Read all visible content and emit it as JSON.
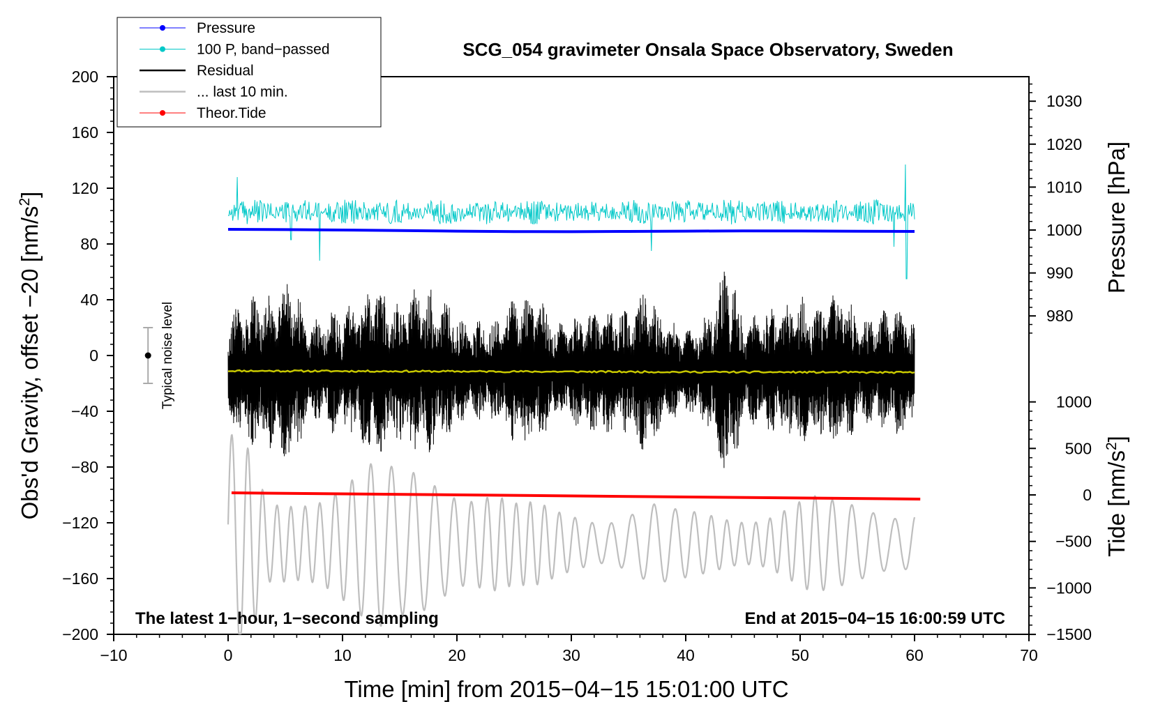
{
  "chart_data": {
    "type": "line",
    "title": "SCG_054 gravimeter Onsala Space Observatory, Sweden",
    "xlabel": "Time [min] from 2015−04−15 15:01:00 UTC",
    "ylabel_left": "Obs'd Gravity, offset −20 [nm/s",
    "ylabel_left_sup": "2",
    "ylabel_left_close": "]",
    "ylabel_right_pressure": "Pressure [hPa]",
    "ylabel_right_tide": "Tide [nm/s",
    "ylabel_right_tide_sup": "2",
    "ylabel_right_tide_close": "]",
    "xlim": [
      -10,
      70
    ],
    "ylim": [
      -200,
      200
    ],
    "x_ticks": [
      -10,
      0,
      10,
      20,
      30,
      40,
      50,
      60,
      70
    ],
    "x_tick_labels": [
      "−10",
      "0",
      "10",
      "20",
      "30",
      "40",
      "50",
      "60",
      "70"
    ],
    "y_ticks": [
      200,
      160,
      120,
      80,
      40,
      0,
      -40,
      -80,
      -120,
      -160,
      -200
    ],
    "y_tick_labels": [
      "200",
      "160",
      "120",
      "80",
      "40",
      "0",
      "−40",
      "−80",
      "−120",
      "−160",
      "−200"
    ],
    "pressure_ticks": [
      1030,
      1020,
      1010,
      1000,
      990,
      980
    ],
    "pressure_tick_labels": [
      "1030",
      "1020",
      "1010",
      "1000",
      "990",
      "980"
    ],
    "pressure_map": {
      "hpa_ref": 1000,
      "y_at_ref": 90,
      "y_per_hpa": 3.08
    },
    "tide_ticks": [
      1000,
      500,
      0,
      -500,
      -1000,
      -1500
    ],
    "tide_tick_labels": [
      "1000",
      "500",
      "0",
      "−500",
      "−1000",
      "−1500"
    ],
    "tide_map": {
      "nms2_ref": 0,
      "y_at_ref": -100,
      "y_per_nms2": 0.0667
    },
    "legend": [
      {
        "label": "Pressure",
        "color": "#0000ff",
        "style": "line-dot"
      },
      {
        "label": "100 P, band−passed",
        "color": "#00c8c8",
        "style": "line-dot"
      },
      {
        "label": "Residual",
        "color": "#000000",
        "style": "line"
      },
      {
        "label": "... last 10 min.",
        "color": "#bebebe",
        "style": "line"
      },
      {
        "label": "Theor.Tide",
        "color": "#ff0000",
        "style": "line-dot"
      }
    ],
    "annotation_left": "The latest 1−hour, 1−second sampling",
    "annotation_right": "End at 2015−04−15 16:00:59 UTC",
    "noise_label": "Typical noise level",
    "noise_bar": {
      "x": -7,
      "center": 0,
      "half_range": 20
    },
    "series": [
      {
        "name": "Pressure",
        "color": "#0000ff",
        "x_start": 0,
        "x_end": 60,
        "y": [
          90.5,
          90.3,
          90.0,
          89.6,
          89.2,
          88.9,
          88.8,
          89.0,
          89.2,
          89.4,
          89.3,
          89.1,
          89.0
        ]
      },
      {
        "name": "100 P, band-passed",
        "color": "#00c8c8",
        "x_start": 0,
        "x_end": 60,
        "center": 103,
        "amplitude": 9,
        "spikes": [
          [
            0.8,
            128
          ],
          [
            5.5,
            83
          ],
          [
            8.0,
            68
          ],
          [
            37.0,
            75
          ],
          [
            58.2,
            78
          ],
          [
            59.2,
            137
          ],
          [
            59.3,
            55
          ]
        ]
      },
      {
        "name": "Residual",
        "color": "#000000",
        "x_start": 0,
        "x_end": 60,
        "center": -11,
        "envelope": [
          [
            0,
            40
          ],
          [
            2,
            55
          ],
          [
            4,
            58
          ],
          [
            5.5,
            70
          ],
          [
            7,
            35
          ],
          [
            9,
            45
          ],
          [
            11,
            50
          ],
          [
            13,
            65
          ],
          [
            14.5,
            50
          ],
          [
            17,
            62
          ],
          [
            18.5,
            55
          ],
          [
            21,
            35
          ],
          [
            23,
            38
          ],
          [
            25,
            52
          ],
          [
            27,
            55
          ],
          [
            29,
            35
          ],
          [
            31,
            42
          ],
          [
            33,
            48
          ],
          [
            35,
            45
          ],
          [
            36.5,
            62
          ],
          [
            38,
            40
          ],
          [
            40,
            30
          ],
          [
            42,
            42
          ],
          [
            43.8,
            85
          ],
          [
            45,
            38
          ],
          [
            47,
            45
          ],
          [
            49,
            50
          ],
          [
            50.5,
            55
          ],
          [
            52,
            50
          ],
          [
            53.5,
            65
          ],
          [
            55,
            38
          ],
          [
            57,
            42
          ],
          [
            58.5,
            50
          ],
          [
            60,
            38
          ]
        ]
      },
      {
        "name": "... last 10 min.",
        "color": "#bebebe",
        "x_start": 0,
        "x_end": 60,
        "center": -135,
        "envelope": [
          [
            0,
            80
          ],
          [
            2,
            70
          ],
          [
            3.5,
            35
          ],
          [
            5,
            45
          ],
          [
            7,
            55
          ],
          [
            9,
            55
          ],
          [
            11,
            55
          ],
          [
            13,
            60
          ],
          [
            15,
            55
          ],
          [
            17,
            70
          ],
          [
            19,
            72
          ],
          [
            21,
            55
          ],
          [
            23,
            45
          ],
          [
            25,
            30
          ],
          [
            27,
            30
          ],
          [
            29,
            28
          ],
          [
            31,
            30
          ],
          [
            33,
            28
          ],
          [
            35,
            30
          ],
          [
            37,
            32
          ],
          [
            39,
            25
          ],
          [
            41,
            25
          ],
          [
            43,
            28
          ],
          [
            45,
            30
          ],
          [
            47,
            30
          ],
          [
            49,
            32
          ],
          [
            51,
            35
          ],
          [
            53,
            32
          ],
          [
            55,
            35
          ],
          [
            57,
            38
          ],
          [
            59,
            35
          ],
          [
            60,
            35
          ]
        ]
      },
      {
        "name": "Theor.Tide",
        "color": "#ff0000",
        "x_start": 0.3,
        "x_end": 60.5,
        "y_start": -98.5,
        "y_end": -103
      }
    ],
    "mean_line": {
      "name": "running mean",
      "color": "#c8c800",
      "y": -11
    }
  }
}
